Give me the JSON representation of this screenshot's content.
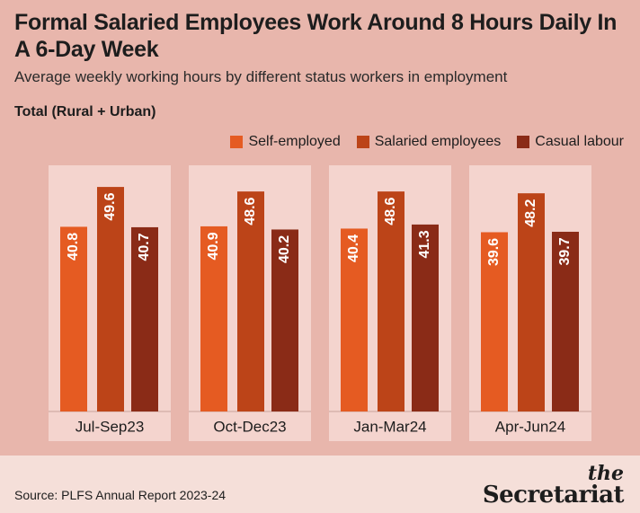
{
  "title": "Formal Salaried Employees Work Around 8 Hours Daily In A 6-Day Week",
  "subtitle": "Average weekly working hours by different status workers in employment",
  "section_label": "Total (Rural + Urban)",
  "source": "Source: PLFS Annual Report 2023-24",
  "brand": {
    "the": "the",
    "name": "Secretariat"
  },
  "colors": {
    "self_employed": "#e55b22",
    "salaried": "#bc4418",
    "casual": "#8a2b17",
    "panel": "#f4d4ce",
    "background": "#e8b6ac"
  },
  "chart_data": {
    "type": "bar",
    "categories": [
      "Jul-Sep23",
      "Oct-Dec23",
      "Jan-Mar24",
      "Apr-Jun24"
    ],
    "series": [
      {
        "name": "Self-employed",
        "values": [
          40.8,
          40.9,
          40.4,
          39.6
        ]
      },
      {
        "name": "Salaried employees",
        "values": [
          49.6,
          48.6,
          48.6,
          48.2
        ]
      },
      {
        "name": "Casual labour",
        "values": [
          40.7,
          40.2,
          41.3,
          39.7
        ]
      }
    ],
    "ylim": [
      0,
      52
    ],
    "legend_position": "top-right",
    "grid": false
  }
}
